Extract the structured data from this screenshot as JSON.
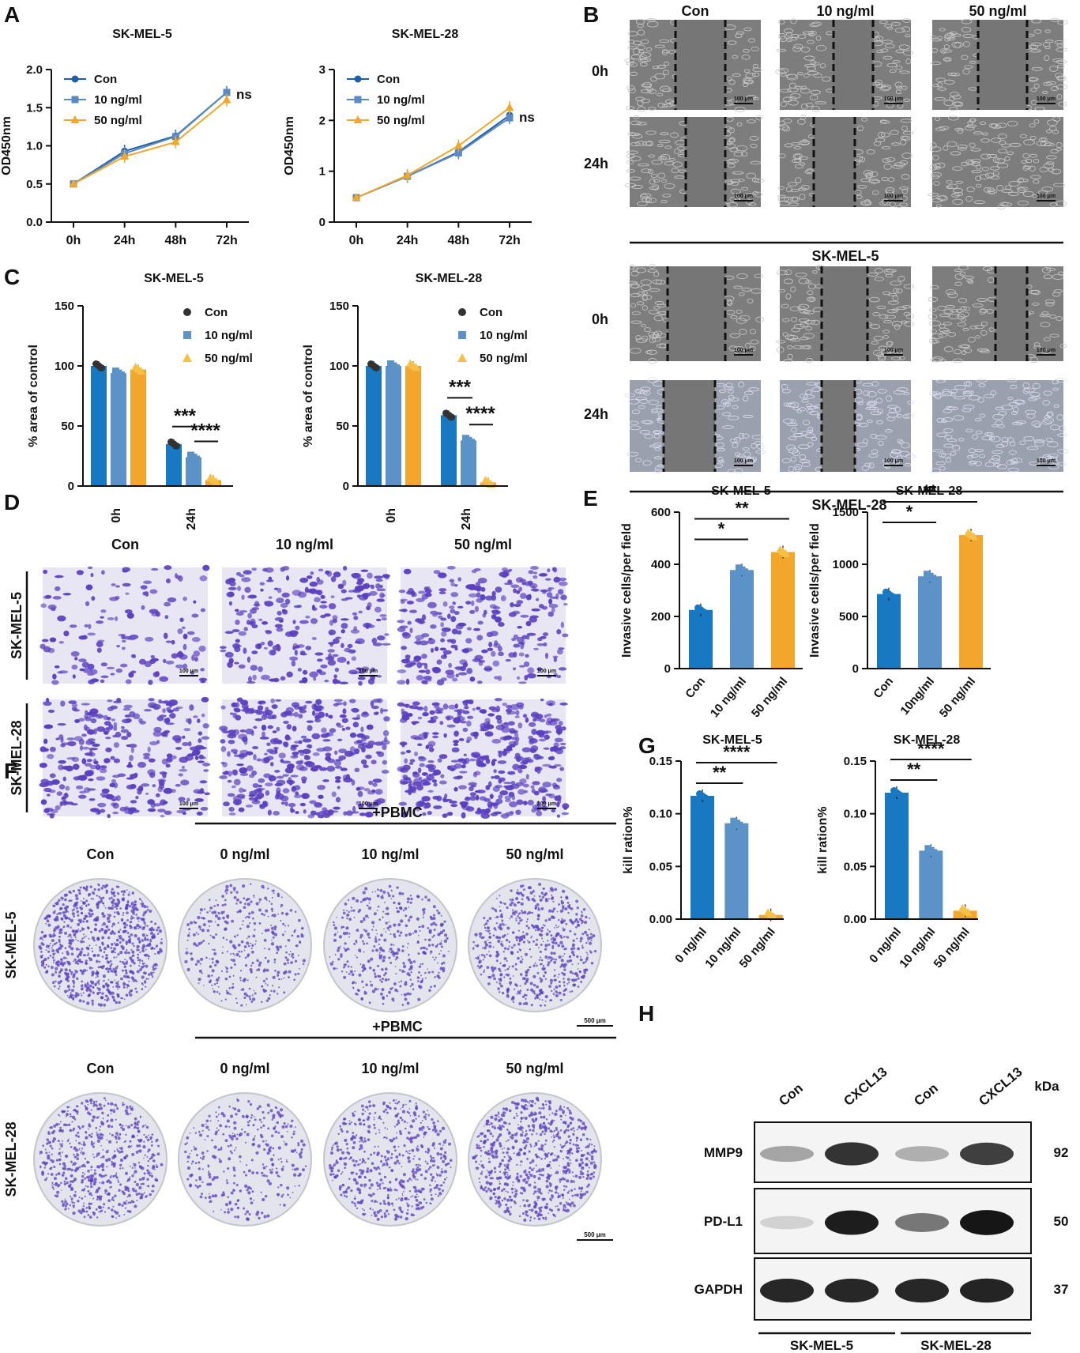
{
  "colors": {
    "con": "#1f5fa8",
    "c10": "#5b8ac2",
    "c50": "#f0a82a",
    "bar_con": "#1878c2",
    "bar_10": "#5b92c8",
    "bar_50": "#f2a62b",
    "bg_micro": "#8a8a8a",
    "stain": "#5a3fc0"
  },
  "panels": {
    "A": {
      "letter": "A",
      "ylabel": "OD450nm",
      "legend": [
        "Con",
        "10 ng/ml",
        "50 ng/ml"
      ],
      "ns": "ns"
    },
    "B": {
      "letter": "B",
      "cols": [
        "Con",
        "10 ng/ml",
        "50 ng/ml"
      ],
      "rows": [
        "0h",
        "24h"
      ],
      "cell_top": "SK-MEL-5",
      "cell_bottom": "SK-MEL-28",
      "scale": "100 μm"
    },
    "C": {
      "letter": "C",
      "ylabel": "% area of control",
      "legend": [
        "Con",
        "10 ng/ml",
        "50 ng/ml"
      ]
    },
    "D": {
      "letter": "D",
      "cols": [
        "Con",
        "10 ng/ml",
        "50 ng/ml"
      ],
      "rows": [
        "SK-MEL-5",
        "SK-MEL-28"
      ],
      "scale": "100 μm"
    },
    "E": {
      "letter": "E",
      "ylabel": "Invasive cells/per field"
    },
    "F": {
      "letter": "F",
      "pbmc": "+PBMC",
      "cols": [
        "Con",
        "0 ng/ml",
        "10 ng/ml",
        "50 ng/ml"
      ],
      "rows": [
        "SK-MEL-5",
        "SK-MEL-28"
      ],
      "scale": "500 μm"
    },
    "G": {
      "letter": "G",
      "ylabel": "kill ration%"
    },
    "H": {
      "letter": "H",
      "lanes": [
        "Con",
        "CXCL13",
        "Con",
        "CXCL13"
      ],
      "kda": "kDa",
      "proteins": [
        "MMP9",
        "PD-L1",
        "GAPDH"
      ],
      "weights": [
        "92",
        "50",
        "37"
      ],
      "groups": [
        "SK-MEL-5",
        "SK-MEL-28"
      ]
    }
  },
  "chart_data": [
    {
      "panel": "A",
      "type": "line",
      "title": "SK-MEL-5",
      "xlabel": "",
      "ylabel": "OD450nm",
      "categories": [
        "0h",
        "24h",
        "48h",
        "72h"
      ],
      "ylim": [
        0,
        2.0
      ],
      "yticks": [
        "0.0",
        "0.5",
        "1.0",
        "1.5",
        "2.0"
      ],
      "series": [
        {
          "name": "Con",
          "values": [
            0.5,
            0.93,
            1.13,
            1.7
          ]
        },
        {
          "name": "10 ng/ml",
          "values": [
            0.5,
            0.9,
            1.12,
            1.7
          ]
        },
        {
          "name": "50 ng/ml",
          "values": [
            0.5,
            0.86,
            1.05,
            1.6
          ]
        }
      ],
      "annotation": "ns"
    },
    {
      "panel": "A",
      "type": "line",
      "title": "SK-MEL-28",
      "xlabel": "",
      "ylabel": "OD450nm",
      "categories": [
        "0h",
        "24h",
        "48h",
        "72h"
      ],
      "ylim": [
        0,
        3
      ],
      "yticks": [
        "0",
        "1",
        "2",
        "3"
      ],
      "series": [
        {
          "name": "Con",
          "values": [
            0.48,
            0.9,
            1.38,
            2.1
          ]
        },
        {
          "name": "10 ng/ml",
          "values": [
            0.48,
            0.9,
            1.36,
            2.05
          ]
        },
        {
          "name": "50 ng/ml",
          "values": [
            0.48,
            0.92,
            1.5,
            2.25
          ]
        }
      ],
      "annotation": "ns"
    },
    {
      "panel": "C",
      "type": "bar",
      "title": "SK-MEL-5",
      "ylabel": "% area of control",
      "categories": [
        "0h",
        "24h"
      ],
      "ylim": [
        0,
        150
      ],
      "yticks": [
        "0",
        "50",
        "100",
        "150"
      ],
      "series": [
        {
          "name": "Con",
          "values": [
            100,
            35
          ]
        },
        {
          "name": "10 ng/ml",
          "values": [
            94,
            24
          ]
        },
        {
          "name": "50 ng/ml",
          "values": [
            97,
            5
          ]
        }
      ],
      "annotations": [
        "***",
        "****"
      ]
    },
    {
      "panel": "C",
      "type": "bar",
      "title": "SK-MEL-28",
      "ylabel": "% area of control",
      "categories": [
        "0h",
        "24h"
      ],
      "ylim": [
        0,
        150
      ],
      "yticks": [
        "0",
        "50",
        "100",
        "150"
      ],
      "series": [
        {
          "name": "Con",
          "values": [
            100,
            59
          ]
        },
        {
          "name": "10 ng/ml",
          "values": [
            100,
            38
          ]
        },
        {
          "name": "50 ng/ml",
          "values": [
            100,
            3
          ]
        }
      ],
      "annotations": [
        "***",
        "****"
      ]
    },
    {
      "panel": "E",
      "type": "bar",
      "title": "SK-MEL-5",
      "ylabel": "Invasive cells/per field",
      "categories": [
        "Con",
        "10 ng/ml",
        "50 ng/ml"
      ],
      "values": [
        225,
        378,
        447
      ],
      "ylim": [
        0,
        600
      ],
      "yticks": [
        "0",
        "200",
        "400",
        "600"
      ],
      "annotations": [
        "*",
        "**"
      ]
    },
    {
      "panel": "E",
      "type": "bar",
      "title": "SK-MEL-28",
      "ylabel": "Invasive cells/per field",
      "categories": [
        "Con",
        "10ng/ml",
        "50 ng/ml"
      ],
      "values": [
        715,
        885,
        1280
      ],
      "ylim": [
        0,
        1500
      ],
      "yticks": [
        "0",
        "500",
        "1000",
        "1500"
      ],
      "annotations": [
        "*",
        "**"
      ]
    },
    {
      "panel": "G",
      "type": "bar",
      "title": "SK-MEL-5",
      "ylabel": "kill ration%",
      "categories": [
        "0 ng/ml",
        "10 ng/ml",
        "50 ng/ml"
      ],
      "values": [
        0.117,
        0.091,
        0.004
      ],
      "ylim": [
        0,
        0.15
      ],
      "yticks": [
        "0.00",
        "0.05",
        "0.10",
        "0.15"
      ],
      "annotations": [
        "**",
        "****"
      ]
    },
    {
      "panel": "G",
      "type": "bar",
      "title": "SK-MEL-28",
      "ylabel": "kill ration%",
      "categories": [
        "0 ng/ml",
        "10 ng/ml",
        "50 ng/ml"
      ],
      "values": [
        0.12,
        0.065,
        0.008
      ],
      "ylim": [
        0,
        0.15
      ],
      "yticks": [
        "0.00",
        "0.05",
        "0.10",
        "0.15"
      ],
      "annotations": [
        "**",
        "****"
      ]
    }
  ]
}
